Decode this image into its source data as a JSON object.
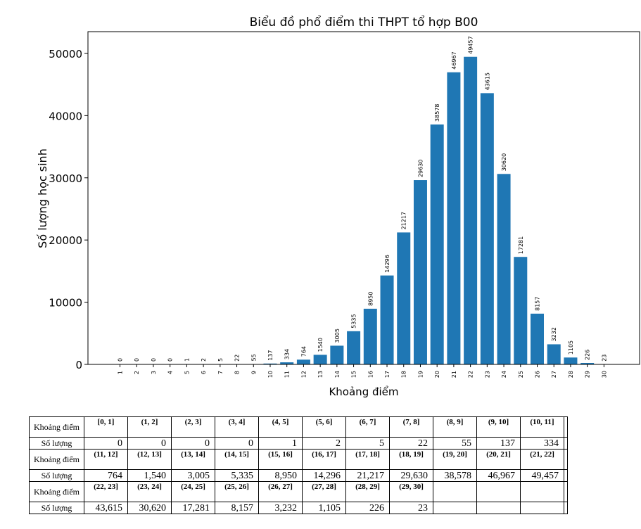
{
  "chart_data": {
    "type": "bar",
    "title": "Biểu đồ phổ điểm thi THPT tổ hợp B00",
    "xlabel": "Khoảng điểm",
    "ylabel": "Số lượng học sinh",
    "categories": [
      "1",
      "2",
      "3",
      "4",
      "5",
      "6",
      "7",
      "8",
      "9",
      "10",
      "11",
      "12",
      "13",
      "14",
      "15",
      "16",
      "17",
      "18",
      "19",
      "20",
      "21",
      "22",
      "23",
      "24",
      "25",
      "26",
      "27",
      "28",
      "29",
      "30"
    ],
    "values": [
      0,
      0,
      0,
      0,
      1,
      2,
      5,
      22,
      55,
      137,
      334,
      764,
      1540,
      3005,
      5335,
      8950,
      14296,
      21217,
      29630,
      38578,
      46967,
      49457,
      43615,
      30620,
      17281,
      8157,
      3232,
      1105,
      226,
      23
    ],
    "yticks": [
      "0",
      "10000",
      "20000",
      "30000",
      "40000",
      "50000"
    ],
    "ylim": [
      0,
      53500
    ],
    "bar_color": "#1f77b4",
    "grid": false,
    "legend": "none"
  },
  "table": {
    "header_interval": "Khoảng điểm",
    "header_count": "Số lượng",
    "groups": [
      {
        "intervals": [
          "[0, 1]",
          "(1, 2]",
          "(2, 3]",
          "(3, 4]",
          "(4, 5]",
          "(5, 6]",
          "(6, 7]",
          "(7, 8]",
          "(8, 9]",
          "(9, 10]",
          "(10, 11]"
        ],
        "counts": [
          "0",
          "0",
          "0",
          "0",
          "1",
          "2",
          "5",
          "22",
          "55",
          "137",
          "334"
        ]
      },
      {
        "intervals": [
          "(11, 12]",
          "(12, 13]",
          "(13, 14]",
          "(14, 15]",
          "(15, 16]",
          "(16, 17]",
          "(17, 18]",
          "(18, 19]",
          "(19, 20]",
          "(20, 21]",
          "(21, 22]"
        ],
        "counts": [
          "764",
          "1,540",
          "3,005",
          "5,335",
          "8,950",
          "14,296",
          "21,217",
          "29,630",
          "38,578",
          "46,967",
          "49,457"
        ]
      },
      {
        "intervals": [
          "(22, 23]",
          "(23, 24]",
          "(24, 25]",
          "(25, 26]",
          "(26, 27]",
          "(27, 28]",
          "(28, 29]",
          "(29, 30]",
          "",
          "",
          ""
        ],
        "counts": [
          "43,615",
          "30,620",
          "17,281",
          "8,157",
          "3,232",
          "1,105",
          "226",
          "23",
          "",
          "",
          ""
        ]
      }
    ]
  }
}
